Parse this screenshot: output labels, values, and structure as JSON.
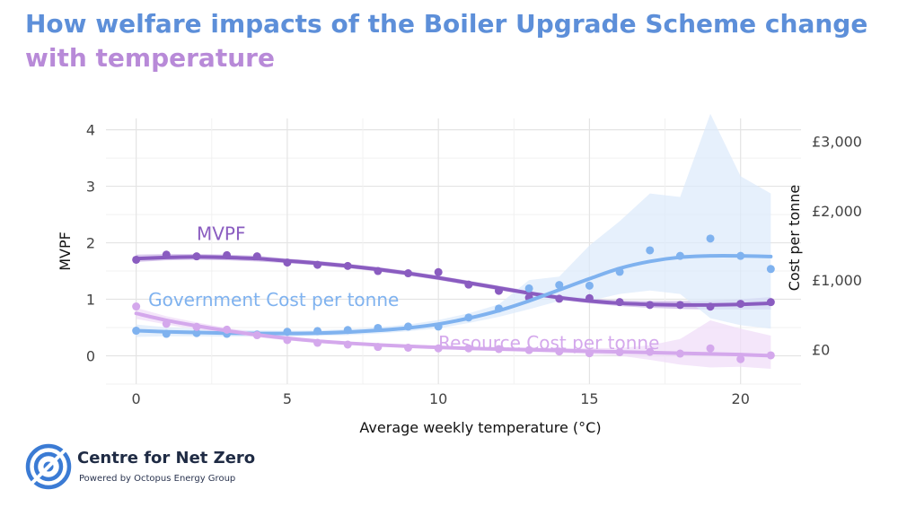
{
  "title": {
    "line1": "How welfare impacts of the Boiler Upgrade Scheme change",
    "line2": "with temperature",
    "color_line1": "#5d8fd9",
    "color_line2": "#b88ad8"
  },
  "logo": {
    "name": "Centre for Net Zero",
    "tagline": "Powered by Octopus Energy Group",
    "color": "#3b7bd4"
  },
  "chart_data": {
    "type": "scatter",
    "xlabel": "Average weekly temperature (°C)",
    "ylabel_left": "MVPF",
    "ylabel_right": "Cost per tonne",
    "xlim": [
      -1,
      22
    ],
    "ylim_left": [
      -0.5,
      4.2
    ],
    "ylim_right": [
      -500,
      3333
    ],
    "x_ticks": [
      0,
      5,
      10,
      15,
      20
    ],
    "y_ticks_left": [
      0,
      1,
      2,
      3,
      4
    ],
    "y_ticks_right": [
      "£0",
      "£1,000",
      "£2,000",
      "£3,000"
    ],
    "y_ticks_right_values": [
      0,
      1000,
      2000,
      3000
    ],
    "grid": true,
    "series": [
      {
        "name": "MVPF",
        "axis": "left",
        "color": "#8a5cc0",
        "band_color": "#c9b2e6",
        "points": [
          [
            0,
            1.7
          ],
          [
            1,
            1.79
          ],
          [
            2,
            1.76
          ],
          [
            3,
            1.78
          ],
          [
            4,
            1.76
          ],
          [
            5,
            1.65
          ],
          [
            6,
            1.61
          ],
          [
            7,
            1.59
          ],
          [
            8,
            1.5
          ],
          [
            9,
            1.46
          ],
          [
            10,
            1.48
          ],
          [
            11,
            1.26
          ],
          [
            12,
            1.15
          ],
          [
            13,
            1.03
          ],
          [
            14,
            1.01
          ],
          [
            15,
            1.02
          ],
          [
            16,
            0.95
          ],
          [
            17,
            0.9
          ],
          [
            18,
            0.9
          ],
          [
            19,
            0.87
          ],
          [
            20,
            0.92
          ],
          [
            21,
            0.95
          ]
        ],
        "fit": [
          [
            0,
            1.72
          ],
          [
            1,
            1.74
          ],
          [
            2,
            1.75
          ],
          [
            3,
            1.74
          ],
          [
            4,
            1.72
          ],
          [
            5,
            1.68
          ],
          [
            6,
            1.64
          ],
          [
            7,
            1.59
          ],
          [
            8,
            1.53
          ],
          [
            9,
            1.46
          ],
          [
            10,
            1.38
          ],
          [
            11,
            1.29
          ],
          [
            12,
            1.2
          ],
          [
            13,
            1.11
          ],
          [
            14,
            1.03
          ],
          [
            15,
            0.97
          ],
          [
            16,
            0.93
          ],
          [
            17,
            0.91
          ],
          [
            18,
            0.9
          ],
          [
            19,
            0.9
          ],
          [
            20,
            0.91
          ],
          [
            21,
            0.93
          ]
        ],
        "band": [
          [
            0,
            1.66,
            1.79
          ],
          [
            1,
            1.69,
            1.8
          ],
          [
            2,
            1.7,
            1.8
          ],
          [
            3,
            1.69,
            1.79
          ],
          [
            4,
            1.67,
            1.77
          ],
          [
            5,
            1.64,
            1.72
          ],
          [
            6,
            1.6,
            1.68
          ],
          [
            7,
            1.55,
            1.63
          ],
          [
            8,
            1.49,
            1.57
          ],
          [
            9,
            1.42,
            1.5
          ],
          [
            10,
            1.34,
            1.42
          ],
          [
            11,
            1.25,
            1.33
          ],
          [
            12,
            1.16,
            1.24
          ],
          [
            13,
            1.07,
            1.15
          ],
          [
            14,
            0.99,
            1.07
          ],
          [
            15,
            0.93,
            1.01
          ],
          [
            16,
            0.88,
            0.98
          ],
          [
            17,
            0.85,
            0.97
          ],
          [
            18,
            0.83,
            0.97
          ],
          [
            19,
            0.82,
            0.98
          ],
          [
            20,
            0.82,
            1.0
          ],
          [
            21,
            0.82,
            1.04
          ]
        ]
      },
      {
        "name": "Government Cost per tonne",
        "axis": "right",
        "color": "#7fb2ef",
        "band_color": "#dbe9fb",
        "points": [
          [
            0,
            270
          ],
          [
            1,
            225
          ],
          [
            2,
            235
          ],
          [
            3,
            225
          ],
          [
            4,
            215
          ],
          [
            5,
            255
          ],
          [
            6,
            265
          ],
          [
            7,
            280
          ],
          [
            8,
            310
          ],
          [
            9,
            330
          ],
          [
            10,
            330
          ],
          [
            11,
            460
          ],
          [
            12,
            590
          ],
          [
            13,
            880
          ],
          [
            14,
            930
          ],
          [
            15,
            920
          ],
          [
            16,
            1120
          ],
          [
            17,
            1430
          ],
          [
            18,
            1350
          ],
          [
            19,
            1600
          ],
          [
            20,
            1350
          ],
          [
            21,
            1160
          ]
        ],
        "fit": [
          [
            0,
            270
          ],
          [
            1,
            255
          ],
          [
            2,
            245
          ],
          [
            3,
            235
          ],
          [
            4,
            230
          ],
          [
            5,
            230
          ],
          [
            6,
            235
          ],
          [
            7,
            250
          ],
          [
            8,
            275
          ],
          [
            9,
            310
          ],
          [
            10,
            365
          ],
          [
            11,
            450
          ],
          [
            12,
            560
          ],
          [
            13,
            700
          ],
          [
            14,
            860
          ],
          [
            15,
            1020
          ],
          [
            16,
            1170
          ],
          [
            17,
            1270
          ],
          [
            18,
            1330
          ],
          [
            19,
            1350
          ],
          [
            20,
            1350
          ],
          [
            21,
            1340
          ]
        ],
        "band": [
          [
            0,
            180,
            360
          ],
          [
            1,
            190,
            320
          ],
          [
            2,
            190,
            300
          ],
          [
            3,
            185,
            285
          ],
          [
            4,
            185,
            275
          ],
          [
            5,
            190,
            270
          ],
          [
            6,
            195,
            275
          ],
          [
            7,
            205,
            295
          ],
          [
            8,
            230,
            320
          ],
          [
            9,
            260,
            360
          ],
          [
            10,
            305,
            425
          ],
          [
            11,
            380,
            520
          ],
          [
            12,
            470,
            650
          ],
          [
            13,
            580,
            1000
          ],
          [
            14,
            700,
            1050
          ],
          [
            15,
            700,
            1500
          ],
          [
            16,
            800,
            1850
          ],
          [
            17,
            850,
            2250
          ],
          [
            18,
            800,
            2200
          ],
          [
            19,
            450,
            3400
          ],
          [
            20,
            350,
            2500
          ],
          [
            21,
            300,
            2250
          ]
        ]
      },
      {
        "name": "Resource Cost per tonne",
        "axis": "right",
        "color": "#d4a8ec",
        "band_color": "#efdcf8",
        "points": [
          [
            0,
            620
          ],
          [
            1,
            370
          ],
          [
            2,
            325
          ],
          [
            3,
            285
          ],
          [
            4,
            205
          ],
          [
            5,
            135
          ],
          [
            6,
            95
          ],
          [
            7,
            70
          ],
          [
            8,
            35
          ],
          [
            9,
            25
          ],
          [
            10,
            15
          ],
          [
            11,
            15
          ],
          [
            12,
            5
          ],
          [
            13,
            -10
          ],
          [
            14,
            -30
          ],
          [
            15,
            -55
          ],
          [
            16,
            -40
          ],
          [
            17,
            -35
          ],
          [
            18,
            -60
          ],
          [
            19,
            15
          ],
          [
            20,
            -140
          ],
          [
            21,
            -85
          ]
        ],
        "fit": [
          [
            0,
            520
          ],
          [
            1,
            420
          ],
          [
            2,
            340
          ],
          [
            3,
            270
          ],
          [
            4,
            210
          ],
          [
            5,
            160
          ],
          [
            6,
            120
          ],
          [
            7,
            90
          ],
          [
            8,
            65
          ],
          [
            9,
            45
          ],
          [
            10,
            30
          ],
          [
            11,
            15
          ],
          [
            12,
            5
          ],
          [
            13,
            -5
          ],
          [
            14,
            -15
          ],
          [
            15,
            -25
          ],
          [
            16,
            -35
          ],
          [
            17,
            -45
          ],
          [
            18,
            -55
          ],
          [
            19,
            -65
          ],
          [
            20,
            -75
          ],
          [
            21,
            -90
          ]
        ],
        "band": [
          [
            0,
            440,
            600
          ],
          [
            1,
            360,
            480
          ],
          [
            2,
            290,
            390
          ],
          [
            3,
            230,
            310
          ],
          [
            4,
            175,
            245
          ],
          [
            5,
            130,
            190
          ],
          [
            6,
            95,
            145
          ],
          [
            7,
            70,
            110
          ],
          [
            8,
            45,
            85
          ],
          [
            9,
            25,
            65
          ],
          [
            10,
            10,
            50
          ],
          [
            11,
            -5,
            35
          ],
          [
            12,
            -20,
            30
          ],
          [
            13,
            -35,
            25
          ],
          [
            14,
            -50,
            20
          ],
          [
            15,
            -70,
            20
          ],
          [
            16,
            -90,
            20
          ],
          [
            17,
            -150,
            60
          ],
          [
            18,
            -220,
            150
          ],
          [
            19,
            -260,
            420
          ],
          [
            20,
            -250,
            300
          ],
          [
            21,
            -280,
            200
          ]
        ]
      }
    ],
    "annotations": [
      {
        "text": "MVPF",
        "x": 2.0,
        "y": 2.05,
        "axis": "left",
        "color": "#8a5cc0"
      },
      {
        "text": "Government Cost per tonne",
        "x": 0.4,
        "y": 0.88,
        "axis": "left",
        "color": "#7fb2ef"
      },
      {
        "text": "Resource Cost per tonne",
        "x": 10.0,
        "y": 0.12,
        "axis": "left",
        "color": "#d4a8ec"
      }
    ]
  }
}
